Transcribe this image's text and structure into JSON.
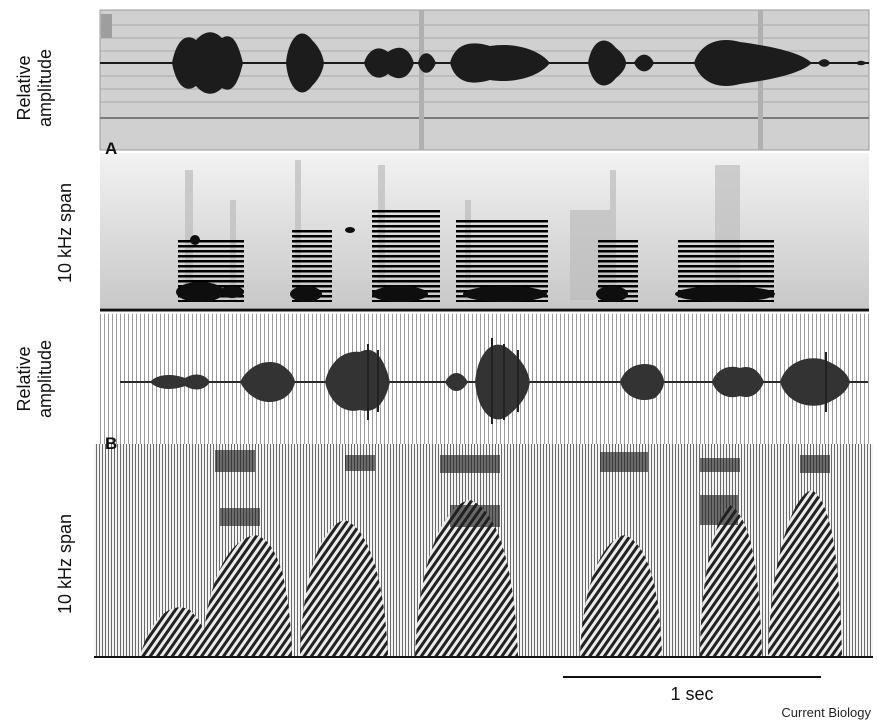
{
  "panels": [
    {
      "letter": "A",
      "waveform_label": "Relative\namplitude",
      "spectrogram_label": "10 kHz span"
    },
    {
      "letter": "B",
      "waveform_label": "Relative\namplitude",
      "spectrogram_label": "10 kHz span"
    }
  ],
  "scale_bar": {
    "label": "1 sec"
  },
  "credit": "Current Biology",
  "colors": {
    "waveform_a_bg": "#d0d0d0",
    "ink": "#1a1a1a",
    "paper": "#ffffff"
  }
}
